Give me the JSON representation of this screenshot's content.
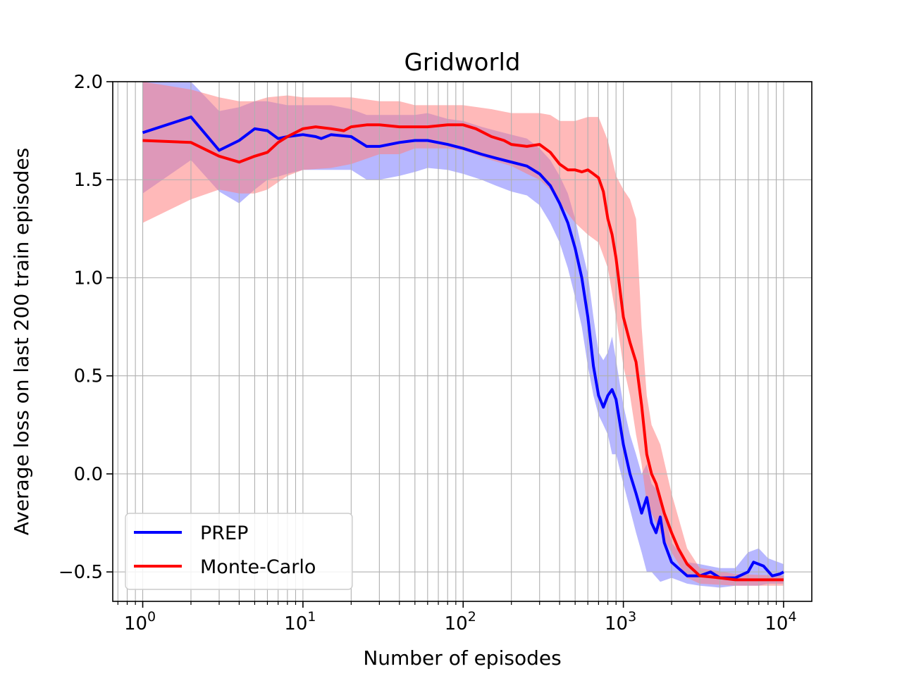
{
  "chart_data": {
    "type": "line",
    "title": "Gridworld",
    "xlabel": "Number of episodes",
    "ylabel": "Average loss on last 200 train episodes",
    "x_scale": "log",
    "xlim": [
      0.65,
      15000
    ],
    "ylim": [
      -0.65,
      2.0
    ],
    "grid": true,
    "grid_minor_x": true,
    "legend_position": "lower-left",
    "x_ticks": [
      {
        "value": 1,
        "base": "10",
        "exp": "0"
      },
      {
        "value": 10,
        "base": "10",
        "exp": "1"
      },
      {
        "value": 100,
        "base": "10",
        "exp": "2"
      },
      {
        "value": 1000,
        "base": "10",
        "exp": "3"
      },
      {
        "value": 10000,
        "base": "10",
        "exp": "4"
      }
    ],
    "y_ticks": [
      {
        "value": 2.0,
        "label": "2.0"
      },
      {
        "value": 1.5,
        "label": "1.5"
      },
      {
        "value": 1.0,
        "label": "1.0"
      },
      {
        "value": 0.5,
        "label": "0.5"
      },
      {
        "value": 0.0,
        "label": "0.0"
      },
      {
        "value": -0.5,
        "label": "−0.5"
      }
    ],
    "series": [
      {
        "name": "PREP",
        "color": "#0000ff",
        "band_color": "#7b7bff",
        "points": [
          [
            1,
            1.74
          ],
          [
            2,
            1.82
          ],
          [
            3,
            1.65
          ],
          [
            4,
            1.7
          ],
          [
            5,
            1.76
          ],
          [
            6,
            1.75
          ],
          [
            7,
            1.71
          ],
          [
            8,
            1.72
          ],
          [
            10,
            1.73
          ],
          [
            12,
            1.72
          ],
          [
            13,
            1.71
          ],
          [
            15,
            1.73
          ],
          [
            20,
            1.72
          ],
          [
            25,
            1.67
          ],
          [
            30,
            1.67
          ],
          [
            40,
            1.69
          ],
          [
            50,
            1.7
          ],
          [
            60,
            1.7
          ],
          [
            80,
            1.68
          ],
          [
            100,
            1.66
          ],
          [
            130,
            1.63
          ],
          [
            160,
            1.61
          ],
          [
            200,
            1.59
          ],
          [
            250,
            1.57
          ],
          [
            300,
            1.53
          ],
          [
            350,
            1.47
          ],
          [
            400,
            1.38
          ],
          [
            450,
            1.28
          ],
          [
            500,
            1.15
          ],
          [
            550,
            1.0
          ],
          [
            600,
            0.8
          ],
          [
            650,
            0.55
          ],
          [
            700,
            0.4
          ],
          [
            750,
            0.34
          ],
          [
            800,
            0.4
          ],
          [
            850,
            0.43
          ],
          [
            900,
            0.38
          ],
          [
            1000,
            0.15
          ],
          [
            1100,
            0.0
          ],
          [
            1200,
            -0.1
          ],
          [
            1300,
            -0.2
          ],
          [
            1400,
            -0.12
          ],
          [
            1500,
            -0.25
          ],
          [
            1600,
            -0.3
          ],
          [
            1700,
            -0.22
          ],
          [
            1800,
            -0.35
          ],
          [
            2000,
            -0.45
          ],
          [
            2200,
            -0.48
          ],
          [
            2500,
            -0.52
          ],
          [
            3000,
            -0.52
          ],
          [
            3500,
            -0.5
          ],
          [
            4000,
            -0.53
          ],
          [
            5000,
            -0.53
          ],
          [
            6000,
            -0.5
          ],
          [
            6500,
            -0.45
          ],
          [
            7500,
            -0.47
          ],
          [
            8500,
            -0.52
          ],
          [
            9500,
            -0.51
          ],
          [
            10000,
            -0.5
          ]
        ],
        "band": [
          [
            1,
            2.0,
            1.43
          ],
          [
            2,
            2.0,
            1.6
          ],
          [
            3,
            1.85,
            1.44
          ],
          [
            4,
            1.87,
            1.38
          ],
          [
            5,
            1.9,
            1.45
          ],
          [
            6,
            1.9,
            1.5
          ],
          [
            8,
            1.88,
            1.53
          ],
          [
            10,
            1.88,
            1.55
          ],
          [
            15,
            1.88,
            1.55
          ],
          [
            20,
            1.86,
            1.55
          ],
          [
            25,
            1.83,
            1.5
          ],
          [
            30,
            1.83,
            1.5
          ],
          [
            40,
            1.83,
            1.52
          ],
          [
            50,
            1.83,
            1.54
          ],
          [
            60,
            1.84,
            1.56
          ],
          [
            80,
            1.81,
            1.55
          ],
          [
            100,
            1.8,
            1.53
          ],
          [
            130,
            1.77,
            1.5
          ],
          [
            160,
            1.75,
            1.47
          ],
          [
            200,
            1.73,
            1.44
          ],
          [
            250,
            1.71,
            1.42
          ],
          [
            300,
            1.66,
            1.37
          ],
          [
            350,
            1.6,
            1.28
          ],
          [
            400,
            1.52,
            1.18
          ],
          [
            450,
            1.43,
            1.05
          ],
          [
            500,
            1.3,
            0.9
          ],
          [
            550,
            1.15,
            0.75
          ],
          [
            600,
            1.02,
            0.55
          ],
          [
            650,
            0.8,
            0.4
          ],
          [
            700,
            0.62,
            0.3
          ],
          [
            750,
            0.58,
            0.25
          ],
          [
            800,
            0.62,
            0.2
          ],
          [
            850,
            0.7,
            0.1
          ],
          [
            900,
            0.58,
            0.1
          ],
          [
            1000,
            0.35,
            -0.05
          ],
          [
            1100,
            0.2,
            -0.18
          ],
          [
            1200,
            0.1,
            -0.3
          ],
          [
            1300,
            0.0,
            -0.4
          ],
          [
            1400,
            0.05,
            -0.5
          ],
          [
            1500,
            -0.05,
            -0.5
          ],
          [
            1700,
            -0.1,
            -0.55
          ],
          [
            2000,
            -0.35,
            -0.53
          ],
          [
            2500,
            -0.45,
            -0.56
          ],
          [
            3000,
            -0.46,
            -0.57
          ],
          [
            4000,
            -0.48,
            -0.58
          ],
          [
            5000,
            -0.48,
            -0.57
          ],
          [
            6000,
            -0.4,
            -0.57
          ],
          [
            7000,
            -0.38,
            -0.57
          ],
          [
            8000,
            -0.43,
            -0.56
          ],
          [
            10000,
            -0.46,
            -0.56
          ]
        ]
      },
      {
        "name": "Monte-Carlo",
        "color": "#ff0000",
        "band_color": "#ff8080",
        "points": [
          [
            1,
            1.7
          ],
          [
            2,
            1.69
          ],
          [
            3,
            1.62
          ],
          [
            4,
            1.59
          ],
          [
            5,
            1.62
          ],
          [
            6,
            1.64
          ],
          [
            7,
            1.69
          ],
          [
            8,
            1.72
          ],
          [
            10,
            1.76
          ],
          [
            12,
            1.77
          ],
          [
            15,
            1.76
          ],
          [
            18,
            1.75
          ],
          [
            20,
            1.77
          ],
          [
            25,
            1.78
          ],
          [
            30,
            1.78
          ],
          [
            40,
            1.77
          ],
          [
            50,
            1.77
          ],
          [
            60,
            1.77
          ],
          [
            80,
            1.78
          ],
          [
            100,
            1.78
          ],
          [
            120,
            1.76
          ],
          [
            150,
            1.72
          ],
          [
            180,
            1.7
          ],
          [
            200,
            1.68
          ],
          [
            250,
            1.67
          ],
          [
            300,
            1.68
          ],
          [
            350,
            1.64
          ],
          [
            400,
            1.58
          ],
          [
            450,
            1.55
          ],
          [
            500,
            1.55
          ],
          [
            550,
            1.54
          ],
          [
            600,
            1.55
          ],
          [
            650,
            1.53
          ],
          [
            700,
            1.51
          ],
          [
            750,
            1.44
          ],
          [
            800,
            1.3
          ],
          [
            850,
            1.22
          ],
          [
            900,
            1.1
          ],
          [
            1000,
            0.8
          ],
          [
            1100,
            0.67
          ],
          [
            1200,
            0.57
          ],
          [
            1300,
            0.35
          ],
          [
            1400,
            0.1
          ],
          [
            1500,
            0.0
          ],
          [
            1600,
            -0.05
          ],
          [
            1800,
            -0.2
          ],
          [
            2000,
            -0.3
          ],
          [
            2200,
            -0.38
          ],
          [
            2500,
            -0.46
          ],
          [
            3000,
            -0.52
          ],
          [
            4000,
            -0.53
          ],
          [
            5000,
            -0.54
          ],
          [
            6000,
            -0.54
          ],
          [
            8000,
            -0.54
          ],
          [
            10000,
            -0.54
          ]
        ],
        "band": [
          [
            1,
            2.0,
            1.28
          ],
          [
            2,
            1.96,
            1.4
          ],
          [
            3,
            1.92,
            1.45
          ],
          [
            4,
            1.9,
            1.43
          ],
          [
            5,
            1.9,
            1.43
          ],
          [
            6,
            1.92,
            1.45
          ],
          [
            8,
            1.93,
            1.52
          ],
          [
            10,
            1.92,
            1.55
          ],
          [
            15,
            1.92,
            1.56
          ],
          [
            20,
            1.92,
            1.58
          ],
          [
            30,
            1.9,
            1.63
          ],
          [
            40,
            1.9,
            1.63
          ],
          [
            50,
            1.88,
            1.66
          ],
          [
            60,
            1.88,
            1.66
          ],
          [
            80,
            1.88,
            1.66
          ],
          [
            100,
            1.88,
            1.65
          ],
          [
            150,
            1.86,
            1.6
          ],
          [
            200,
            1.84,
            1.57
          ],
          [
            250,
            1.84,
            1.53
          ],
          [
            300,
            1.84,
            1.5
          ],
          [
            350,
            1.83,
            1.45
          ],
          [
            400,
            1.8,
            1.38
          ],
          [
            500,
            1.8,
            1.28
          ],
          [
            600,
            1.82,
            1.22
          ],
          [
            700,
            1.82,
            1.18
          ],
          [
            800,
            1.7,
            1.05
          ],
          [
            900,
            1.52,
            0.8
          ],
          [
            1000,
            1.45,
            0.55
          ],
          [
            1100,
            1.4,
            0.4
          ],
          [
            1200,
            1.3,
            0.2
          ],
          [
            1300,
            0.75,
            0.05
          ],
          [
            1400,
            0.4,
            -0.15
          ],
          [
            1500,
            0.25,
            -0.2
          ],
          [
            1700,
            0.15,
            -0.3
          ],
          [
            2000,
            -0.1,
            -0.4
          ],
          [
            2500,
            -0.38,
            -0.53
          ],
          [
            3000,
            -0.48,
            -0.56
          ],
          [
            5000,
            -0.51,
            -0.57
          ],
          [
            10000,
            -0.52,
            -0.57
          ]
        ]
      }
    ]
  }
}
